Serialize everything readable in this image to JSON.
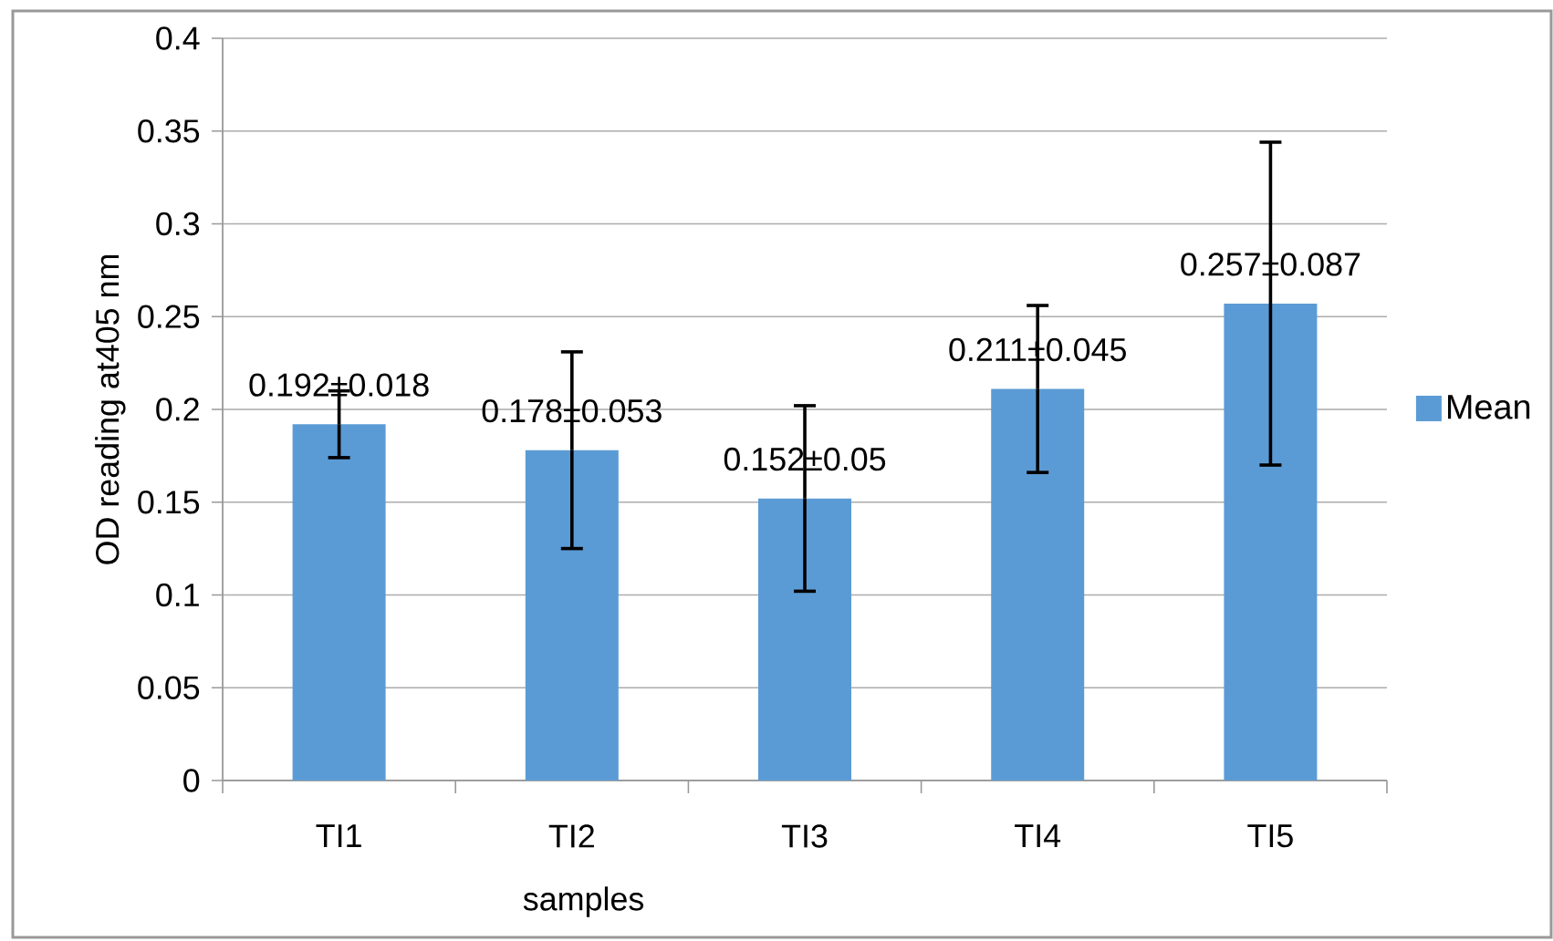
{
  "chart_data": {
    "type": "bar",
    "xlabel": "samples",
    "ylabel": "OD reading at405 nm",
    "categories": [
      "TI1",
      "TI2",
      "TI3",
      "TI4",
      "TI5"
    ],
    "series": [
      {
        "name": "Mean",
        "color": "#5b9bd5",
        "values": [
          0.192,
          0.178,
          0.152,
          0.211,
          0.257
        ],
        "errors": [
          0.018,
          0.053,
          0.05,
          0.045,
          0.087
        ],
        "value_labels": [
          "0.192±0.018",
          "0.178±0.053",
          "0.152±0.05",
          "0.211±0.045",
          "0.257±0.087"
        ]
      }
    ],
    "ylim": [
      0,
      0.4
    ],
    "yticks": [
      0,
      0.05,
      0.1,
      0.15,
      0.2,
      0.25,
      0.3,
      0.35,
      0.4
    ],
    "grid": "y",
    "legend": "right"
  }
}
